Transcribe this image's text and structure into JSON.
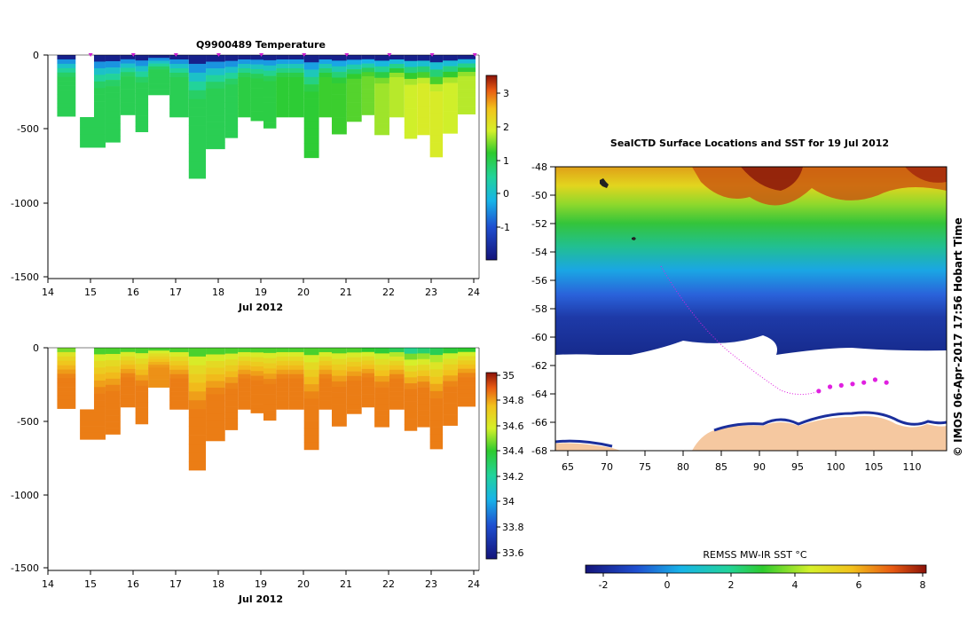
{
  "temp_chart": {
    "title": "Q9900489  Temperature",
    "xlabel": "Jul 2012",
    "x_ticks": [
      "14",
      "15",
      "16",
      "17",
      "18",
      "19",
      "20",
      "21",
      "22",
      "23",
      "24"
    ],
    "y_ticks": [
      "0",
      "-500",
      "-1000",
      "-1500"
    ],
    "colorbar_ticks": [
      "3",
      "2",
      "1",
      "0",
      "-1"
    ]
  },
  "sal_chart": {
    "xlabel": "Jul 2012",
    "x_ticks": [
      "14",
      "15",
      "16",
      "17",
      "18",
      "19",
      "20",
      "21",
      "22",
      "23",
      "24"
    ],
    "y_ticks": [
      "0",
      "-500",
      "-1000",
      "-1500"
    ],
    "colorbar_ticks": [
      "35",
      "34.8",
      "34.6",
      "34.4",
      "34.2",
      "34",
      "33.8",
      "33.6"
    ]
  },
  "map": {
    "title": "SealCTD Surface Locations and SST for 19 Jul 2012",
    "lat_ticks": [
      "-48",
      "-50",
      "-52",
      "-54",
      "-56",
      "-58",
      "-60",
      "-62",
      "-64",
      "-66",
      "-68"
    ],
    "lon_ticks": [
      "65",
      "70",
      "75",
      "80",
      "85",
      "90",
      "95",
      "100",
      "105",
      "110"
    ],
    "side_label": "© IMOS 06-Apr-2017 17:56 Hobart Time",
    "colorbar_title": "REMSS MW-IR SST °C",
    "colorbar_ticks": [
      "-2",
      "0",
      "2",
      "4",
      "6",
      "8"
    ]
  },
  "chart_data": [
    {
      "type": "heatmap",
      "title": "Q9900489  Temperature",
      "xlabel": "Jul 2012",
      "ylabel": "",
      "xlim": [
        14,
        24.1
      ],
      "ylim": [
        -1500,
        0
      ],
      "colorbar_range": [
        -2,
        3.6
      ],
      "profiles": [
        {
          "day": 14.3,
          "max_depth": -415,
          "top": -1.8,
          "bottom": 1.0
        },
        {
          "day": 15.2,
          "max_depth": -625,
          "top": -1.8,
          "bottom": 1.0
        },
        {
          "day": 15.5,
          "max_depth": -590,
          "top": -1.8,
          "bottom": 1.0
        },
        {
          "day": 15.9,
          "max_depth": -405,
          "top": -1.8,
          "bottom": 1.0
        },
        {
          "day": 16.2,
          "max_depth": -520,
          "top": -1.8,
          "bottom": 1.0
        },
        {
          "day": 16.5,
          "max_depth": -270,
          "top": -1.8,
          "bottom": 1.0
        },
        {
          "day": 17.2,
          "max_depth": -420,
          "top": -1.8,
          "bottom": 1.0
        },
        {
          "day": 17.4,
          "max_depth": -835,
          "top": -1.8,
          "bottom": 1.0
        },
        {
          "day": 18.0,
          "max_depth": -635,
          "top": -1.8,
          "bottom": 1.0
        },
        {
          "day": 18.3,
          "max_depth": -560,
          "top": -1.8,
          "bottom": 1.0
        },
        {
          "day": 18.6,
          "max_depth": -420,
          "top": -1.8,
          "bottom": 1.1
        },
        {
          "day": 18.9,
          "max_depth": -445,
          "top": -1.8,
          "bottom": 1.1
        },
        {
          "day": 19.2,
          "max_depth": -495,
          "top": -1.8,
          "bottom": 1.1
        },
        {
          "day": 19.5,
          "max_depth": -420,
          "top": -1.8,
          "bottom": 1.2
        },
        {
          "day": 19.8,
          "max_depth": -420,
          "top": -1.8,
          "bottom": 1.2
        },
        {
          "day": 20.2,
          "max_depth": -695,
          "top": -1.8,
          "bottom": 1.2
        },
        {
          "day": 20.5,
          "max_depth": -420,
          "top": -1.8,
          "bottom": 1.3
        },
        {
          "day": 20.8,
          "max_depth": -535,
          "top": -1.8,
          "bottom": 1.3
        },
        {
          "day": 21.2,
          "max_depth": -450,
          "top": -1.8,
          "bottom": 1.4
        },
        {
          "day": 21.5,
          "max_depth": -405,
          "top": -1.8,
          "bottom": 1.5
        },
        {
          "day": 21.8,
          "max_depth": -540,
          "top": -1.8,
          "bottom": 1.7
        },
        {
          "day": 22.2,
          "max_depth": -420,
          "top": -1.8,
          "bottom": 1.8
        },
        {
          "day": 22.5,
          "max_depth": -565,
          "top": -1.8,
          "bottom": 1.9
        },
        {
          "day": 22.8,
          "max_depth": -540,
          "top": -1.8,
          "bottom": 2.0
        },
        {
          "day": 23.1,
          "max_depth": -690,
          "top": -1.8,
          "bottom": 2.0
        },
        {
          "day": 23.4,
          "max_depth": -530,
          "top": -1.8,
          "bottom": 1.9
        },
        {
          "day": 23.8,
          "max_depth": -400,
          "top": -1.8,
          "bottom": 1.8
        }
      ]
    },
    {
      "type": "heatmap",
      "title": "",
      "xlabel": "Jul 2012",
      "ylabel": "",
      "xlim": [
        14,
        24.1
      ],
      "ylim": [
        -1500,
        0
      ],
      "colorbar_range": [
        33.55,
        35.05
      ],
      "profiles": [
        {
          "day": 14.3,
          "max_depth": -415,
          "top": 34.5,
          "bottom": 34.88
        },
        {
          "day": 15.2,
          "max_depth": -625,
          "top": 34.45,
          "bottom": 34.88
        },
        {
          "day": 15.5,
          "max_depth": -590,
          "top": 34.45,
          "bottom": 34.88
        },
        {
          "day": 15.9,
          "max_depth": -405,
          "top": 34.45,
          "bottom": 34.88
        },
        {
          "day": 16.2,
          "max_depth": -520,
          "top": 34.45,
          "bottom": 34.88
        },
        {
          "day": 16.5,
          "max_depth": -270,
          "top": 34.45,
          "bottom": 34.85
        },
        {
          "day": 17.2,
          "max_depth": -420,
          "top": 34.45,
          "bottom": 34.88
        },
        {
          "day": 17.4,
          "max_depth": -835,
          "top": 34.45,
          "bottom": 34.88
        },
        {
          "day": 18.0,
          "max_depth": -635,
          "top": 34.45,
          "bottom": 34.88
        },
        {
          "day": 18.3,
          "max_depth": -560,
          "top": 34.45,
          "bottom": 34.88
        },
        {
          "day": 18.6,
          "max_depth": -420,
          "top": 34.45,
          "bottom": 34.88
        },
        {
          "day": 18.9,
          "max_depth": -445,
          "top": 34.45,
          "bottom": 34.88
        },
        {
          "day": 19.2,
          "max_depth": -495,
          "top": 34.45,
          "bottom": 34.88
        },
        {
          "day": 19.5,
          "max_depth": -420,
          "top": 34.45,
          "bottom": 34.88
        },
        {
          "day": 19.8,
          "max_depth": -420,
          "top": 34.45,
          "bottom": 34.88
        },
        {
          "day": 20.2,
          "max_depth": -695,
          "top": 34.45,
          "bottom": 34.88
        },
        {
          "day": 20.5,
          "max_depth": -420,
          "top": 34.45,
          "bottom": 34.88
        },
        {
          "day": 20.8,
          "max_depth": -535,
          "top": 34.45,
          "bottom": 34.88
        },
        {
          "day": 21.2,
          "max_depth": -450,
          "top": 34.45,
          "bottom": 34.88
        },
        {
          "day": 21.5,
          "max_depth": -405,
          "top": 34.42,
          "bottom": 34.88
        },
        {
          "day": 21.8,
          "max_depth": -540,
          "top": 34.4,
          "bottom": 34.88
        },
        {
          "day": 22.2,
          "max_depth": -420,
          "top": 34.35,
          "bottom": 34.88
        },
        {
          "day": 22.5,
          "max_depth": -565,
          "top": 34.25,
          "bottom": 34.88
        },
        {
          "day": 22.8,
          "max_depth": -540,
          "top": 34.3,
          "bottom": 34.88
        },
        {
          "day": 23.1,
          "max_depth": -690,
          "top": 34.35,
          "bottom": 34.88
        },
        {
          "day": 23.4,
          "max_depth": -530,
          "top": 34.4,
          "bottom": 34.88
        },
        {
          "day": 23.8,
          "max_depth": -400,
          "top": 34.42,
          "bottom": 34.88
        }
      ]
    },
    {
      "type": "heatmap",
      "title": "SealCTD Surface Locations and SST for 19 Jul 2012",
      "xlabel": "",
      "ylabel": "",
      "xlim": [
        63,
        115
      ],
      "ylim": [
        -68,
        -48
      ],
      "colorbar_range": [
        -2.5,
        8.3
      ],
      "sst_by_latitude": [
        {
          "lat": -48,
          "sst": 6.0
        },
        {
          "lat": -50,
          "sst": 4.5
        },
        {
          "lat": -52,
          "sst": 3.0
        },
        {
          "lat": -54,
          "sst": 2.2
        },
        {
          "lat": -56,
          "sst": 1.2
        },
        {
          "lat": -58,
          "sst": 0.3
        },
        {
          "lat": -60,
          "sst": -1.0
        },
        {
          "lat": -61,
          "sst": -1.7
        }
      ],
      "seal_locations": [
        {
          "lon": 98.0,
          "lat": -63.8
        },
        {
          "lon": 99.5,
          "lat": -63.5
        },
        {
          "lon": 101.0,
          "lat": -63.4
        },
        {
          "lon": 102.5,
          "lat": -63.3
        },
        {
          "lon": 104.0,
          "lat": -63.2
        },
        {
          "lon": 105.5,
          "lat": -63.0
        },
        {
          "lon": 107.0,
          "lat": -63.2
        }
      ]
    }
  ]
}
